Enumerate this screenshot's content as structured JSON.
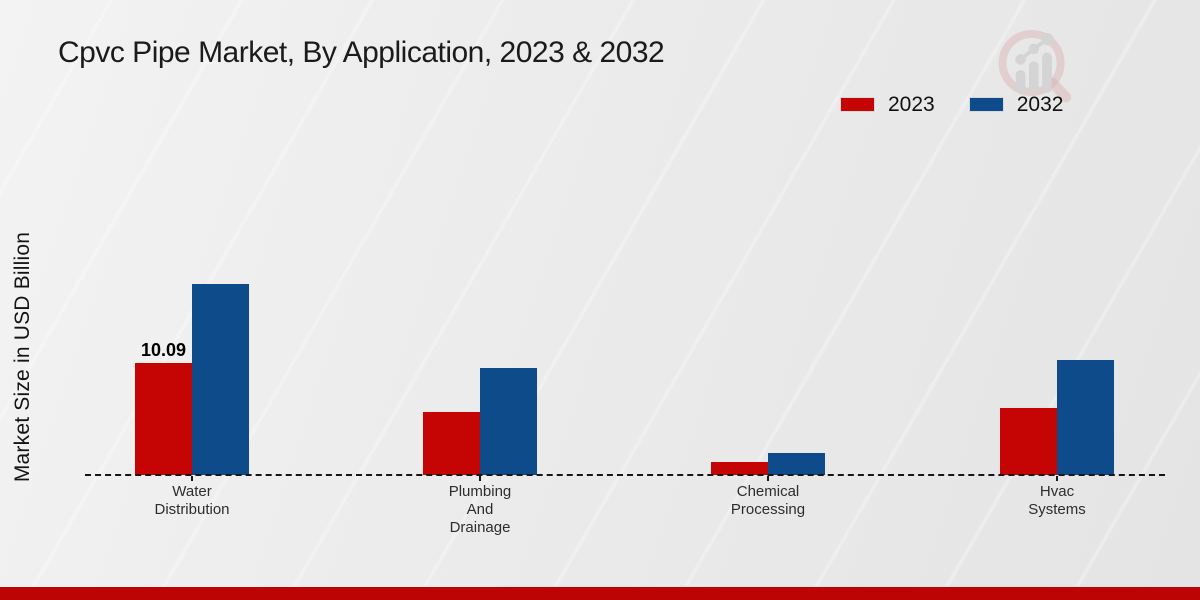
{
  "page": {
    "title": "Cpvc Pipe Market, By Application, 2023 & 2032"
  },
  "colors": {
    "series_2023": "#c50404",
    "series_2032": "#0e4b8b",
    "bottom_band": "#bd0404",
    "axis": "#161616",
    "logo_ring": "#d9aaaa",
    "logo_bars": "#d2d2d2"
  },
  "legend": {
    "items": [
      {
        "label": "2023",
        "color": "#c50404"
      },
      {
        "label": "2032",
        "color": "#0e4b8b"
      }
    ]
  },
  "chart_data": {
    "type": "bar",
    "title": "Cpvc Pipe Market, By Application, 2023 & 2032",
    "xlabel": "",
    "ylabel": "Market Size in USD Billion",
    "categories": [
      "Water Distribution",
      "Plumbing And Drainage",
      "Chemical Processing",
      "Hvac Systems"
    ],
    "category_lines": [
      [
        "Water",
        "Distribution"
      ],
      [
        "Plumbing",
        "And",
        "Drainage"
      ],
      [
        "Chemical",
        "Processing"
      ],
      [
        "Hvac",
        "Systems"
      ]
    ],
    "series": [
      {
        "name": "2023",
        "color": "#c50404",
        "values": [
          10.09,
          5.7,
          1.2,
          6.0
        ]
      },
      {
        "name": "2032",
        "color": "#0e4b8b",
        "values": [
          17.2,
          9.6,
          2.0,
          10.4
        ]
      }
    ],
    "data_labels": [
      {
        "series_index": 0,
        "category_index": 0,
        "text": "10.09"
      }
    ],
    "ylim": [
      0,
      20
    ],
    "grid": false,
    "legend_position": "top-right",
    "baseline_style": "dashed"
  },
  "logo": {
    "name": "magnifier-bar-chart-logo"
  }
}
